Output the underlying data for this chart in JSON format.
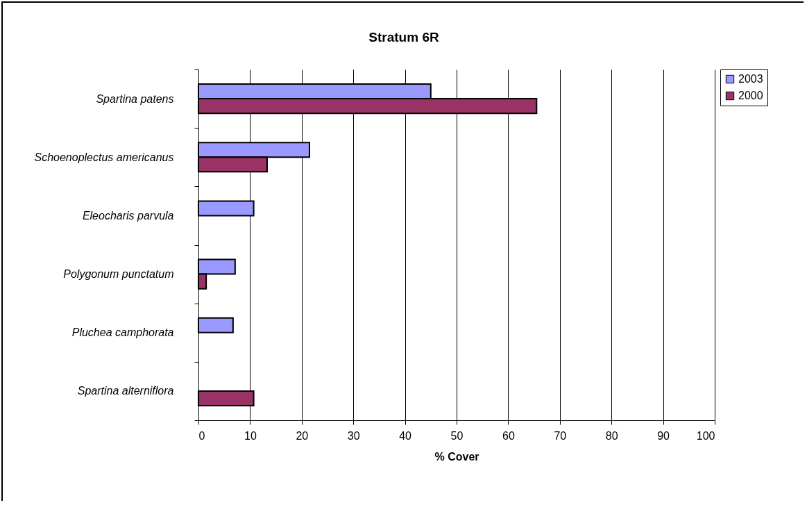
{
  "chart_data": {
    "type": "bar",
    "orientation": "horizontal",
    "title": "Stratum 6R",
    "xlabel": "% Cover",
    "categories": [
      "Spartina patens",
      "Schoenoplectus americanus",
      "Eleocharis parvula",
      "Polygonum punctatum",
      "Pluchea camphorata",
      "Spartina alterniflora"
    ],
    "series": [
      {
        "name": "2003",
        "color": "#9999ff",
        "values": [
          45,
          21.5,
          10.7,
          7.1,
          6.7,
          null
        ]
      },
      {
        "name": "2000",
        "color": "#993366",
        "values": [
          65.5,
          13.3,
          null,
          1.5,
          null,
          10.7
        ]
      }
    ],
    "xlim": [
      0,
      100
    ],
    "xticks": [
      0,
      10,
      20,
      30,
      40,
      50,
      60,
      70,
      80,
      90,
      100
    ],
    "grid": "x",
    "legend": "right"
  }
}
